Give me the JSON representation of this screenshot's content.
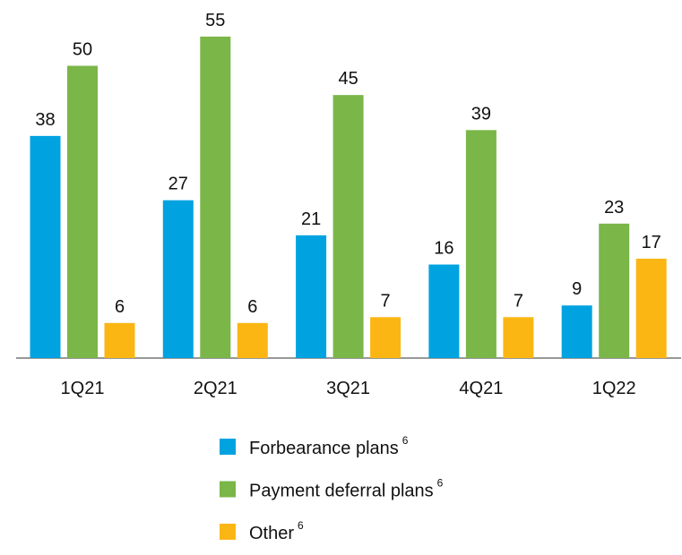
{
  "chart_data": {
    "type": "bar",
    "categories": [
      "1Q21",
      "2Q21",
      "3Q21",
      "4Q21",
      "1Q22"
    ],
    "series": [
      {
        "name": "Forbearance plans",
        "note": "6",
        "color": "#00a3e0",
        "values": [
          38,
          27,
          21,
          16,
          9
        ]
      },
      {
        "name": "Payment deferral plans",
        "note": "6",
        "color": "#7ab648",
        "values": [
          50,
          55,
          45,
          39,
          23
        ]
      },
      {
        "name": "Other",
        "note": "6",
        "color": "#fbb614",
        "values": [
          6,
          6,
          7,
          7,
          17
        ]
      }
    ],
    "legend": "bottom"
  }
}
